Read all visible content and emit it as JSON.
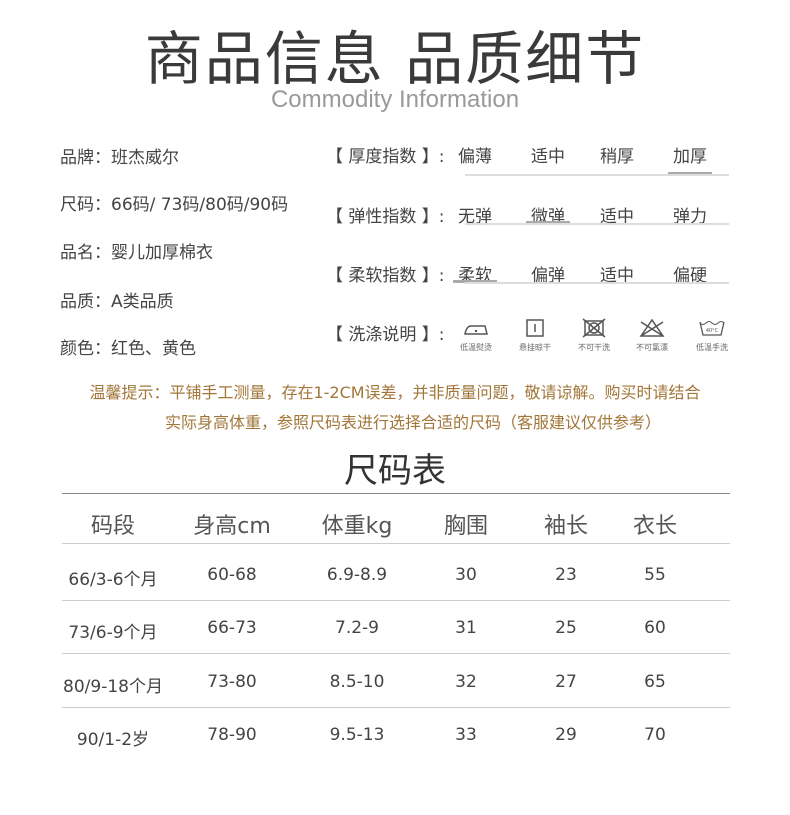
{
  "title": "商品信息 品质细节",
  "subtitle": "Commodity Information",
  "info": [
    "品牌：班杰威尔",
    "尺码：66码/ 73码/80码/90码",
    "品名：婴儿加厚棉衣",
    "品质：A类品质",
    "颜色：红色、黄色"
  ],
  "indices": [
    {
      "label": "【 厚度指数 】:",
      "options": [
        "偏薄",
        "适中",
        "稍厚",
        "加厚"
      ],
      "selected": "加厚"
    },
    {
      "label": "【 弹性指数 】:",
      "options": [
        "无弹",
        "微弹",
        "适中",
        "弹力"
      ],
      "selected": "微弹"
    },
    {
      "label": "【 柔软指数 】:",
      "options": [
        "柔软",
        "偏弹",
        "适中",
        "偏硬"
      ],
      "selected": "柔软"
    }
  ],
  "wash": {
    "label": "【 洗涤说明 】:",
    "items": [
      {
        "icon": "iron-low-temp-icon",
        "text": "低温熨烫"
      },
      {
        "icon": "hang-dry-icon",
        "text": "悬挂晾干"
      },
      {
        "icon": "no-dry-clean-icon",
        "text": "不可干洗"
      },
      {
        "icon": "no-bleach-icon",
        "text": "不可氯漂"
      },
      {
        "icon": "hand-wash-40-icon",
        "text": "低温手洗",
        "temp": "40°C"
      }
    ]
  },
  "tip": [
    "温馨提示：平铺手工测量，存在1-2CM误差，并非质量问题，敬请谅解。购买时请结合",
    "实际身高体重，参照尺码表进行选择合适的尺码（客服建议仅供参考）"
  ],
  "tip_color": "#a27638",
  "table": {
    "title": "尺码表",
    "headers": [
      "码段",
      "身高cm",
      "体重kg",
      "胸围",
      "袖长",
      "衣长"
    ],
    "rows": [
      [
        "66/3-6个月",
        "60-68",
        "6.9-8.9",
        "30",
        "23",
        "55"
      ],
      [
        "73/6-9个月",
        "66-73",
        "7.2-9",
        "31",
        "25",
        "60"
      ],
      [
        "80/9-18个月",
        "73-80",
        "8.5-10",
        "32",
        "27",
        "65"
      ],
      [
        "90/1-2岁",
        "78-90",
        "9.5-13",
        "33",
        "29",
        "70"
      ]
    ]
  }
}
